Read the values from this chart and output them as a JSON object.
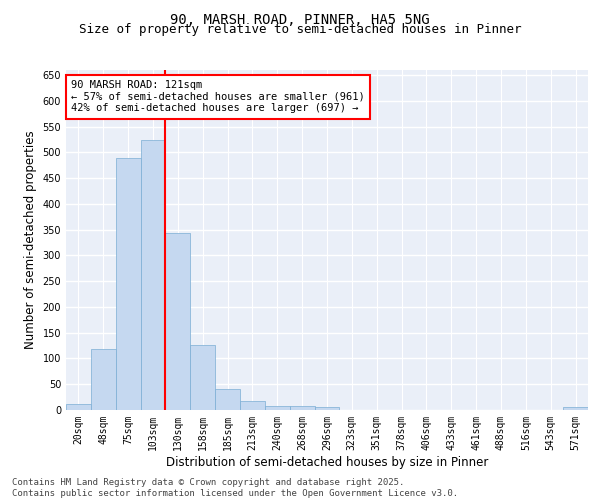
{
  "title_line1": "90, MARSH ROAD, PINNER, HA5 5NG",
  "title_line2": "Size of property relative to semi-detached houses in Pinner",
  "xlabel": "Distribution of semi-detached houses by size in Pinner",
  "ylabel": "Number of semi-detached properties",
  "categories": [
    "20sqm",
    "48sqm",
    "75sqm",
    "103sqm",
    "130sqm",
    "158sqm",
    "185sqm",
    "213sqm",
    "240sqm",
    "268sqm",
    "296sqm",
    "323sqm",
    "351sqm",
    "378sqm",
    "406sqm",
    "433sqm",
    "461sqm",
    "488sqm",
    "516sqm",
    "543sqm",
    "571sqm"
  ],
  "values": [
    11,
    118,
    490,
    524,
    344,
    126,
    41,
    18,
    8,
    7,
    5,
    0,
    0,
    0,
    0,
    0,
    0,
    0,
    0,
    0,
    5
  ],
  "bar_color": "#c5d8f0",
  "bar_edge_color": "#7aadd4",
  "vline_x_index": 3.5,
  "vline_color": "red",
  "annotation_line1": "90 MARSH ROAD: 121sqm",
  "annotation_line2": "← 57% of semi-detached houses are smaller (961)",
  "annotation_line3": "42% of semi-detached houses are larger (697) →",
  "annotation_box_color": "white",
  "annotation_box_edge_color": "red",
  "ylim": [
    0,
    660
  ],
  "yticks": [
    0,
    50,
    100,
    150,
    200,
    250,
    300,
    350,
    400,
    450,
    500,
    550,
    600,
    650
  ],
  "background_color": "#eaeff8",
  "grid_color": "white",
  "footer_line1": "Contains HM Land Registry data © Crown copyright and database right 2025.",
  "footer_line2": "Contains public sector information licensed under the Open Government Licence v3.0.",
  "title_fontsize": 10,
  "subtitle_fontsize": 9,
  "axis_label_fontsize": 8.5,
  "tick_fontsize": 7,
  "annotation_fontsize": 7.5,
  "footer_fontsize": 6.5
}
